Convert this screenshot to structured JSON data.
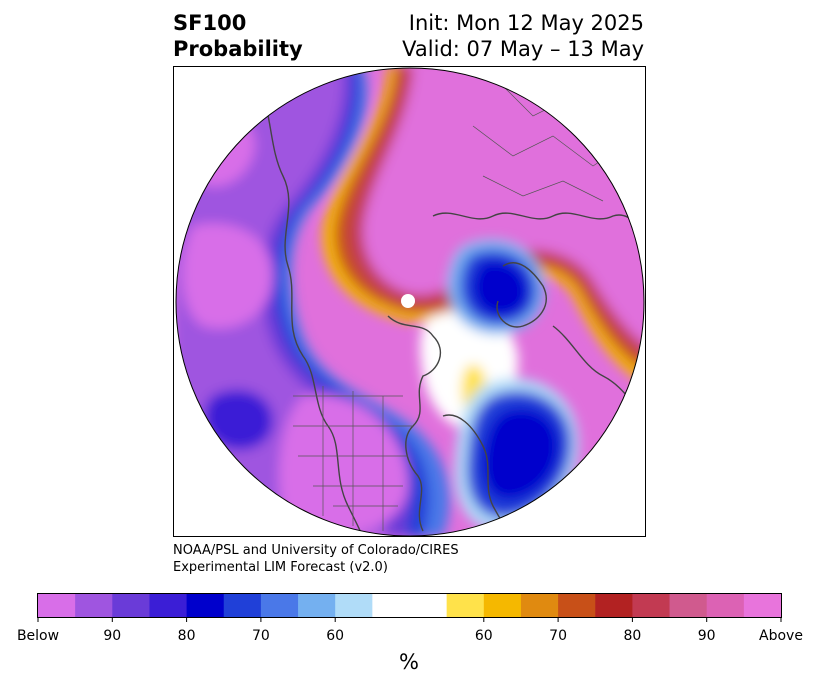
{
  "header": {
    "variable": "SF100",
    "quantity": "Probability",
    "init": "Init: Mon 12 May 2025",
    "valid": "Valid: 07 May – 13 May"
  },
  "credit": {
    "line1": "NOAA/PSL and University of Colorado/CIRES",
    "line2": "Experimental LIM Forecast (v2.0)"
  },
  "colorbar": {
    "unit": "%",
    "below_colors": [
      "#d86ee8",
      "#9f55e0",
      "#6a3bd8",
      "#3b1ed6",
      "#0000cc",
      "#2040d8",
      "#4a78e8",
      "#74b0f0",
      "#b0dcf8"
    ],
    "neutral_color": "#ffffff",
    "above_colors": [
      "#ffe24a",
      "#f5b800",
      "#e08a10",
      "#c85018",
      "#b22222",
      "#c23a52",
      "#d05a8e",
      "#dc62b4",
      "#e874dc"
    ],
    "tick_labels": [
      "Below",
      "90",
      "80",
      "70",
      "60",
      "60",
      "70",
      "80",
      "90",
      "Above"
    ]
  }
}
